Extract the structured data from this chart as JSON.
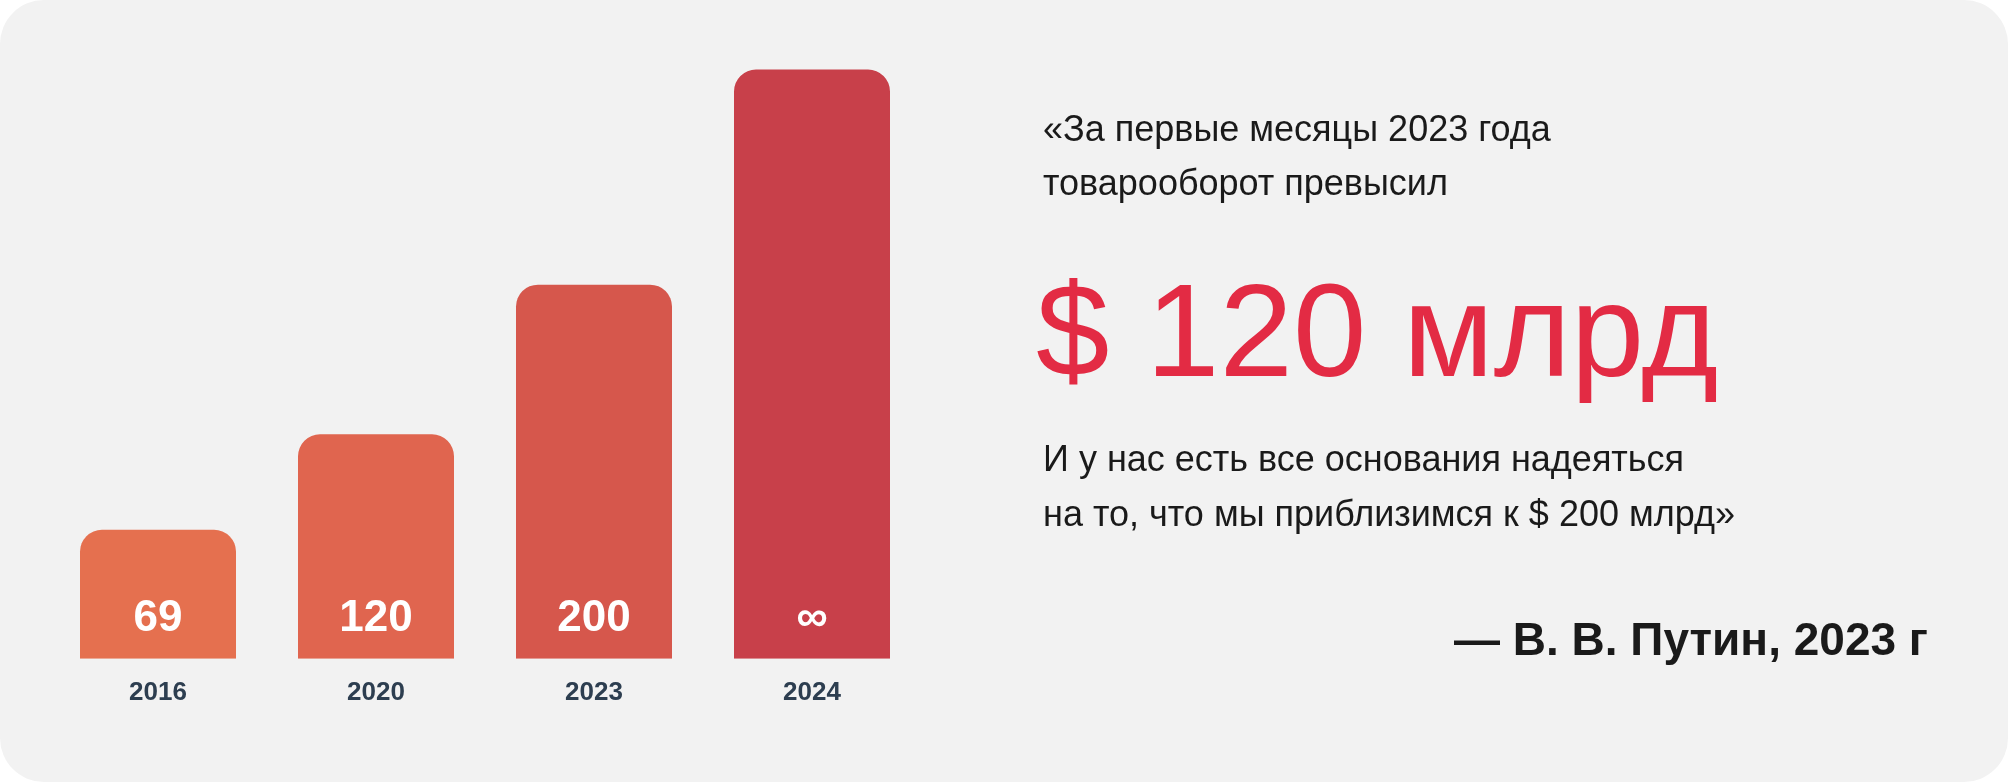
{
  "chart_data": {
    "type": "bar",
    "categories": [
      "2016",
      "2020",
      "2023",
      "2024"
    ],
    "values": [
      69,
      120,
      200,
      315
    ],
    "value_labels": [
      "69",
      "120",
      "200",
      "∞"
    ],
    "colors": [
      "#e5704f",
      "#e0654f",
      "#d6574c",
      "#c8404a"
    ],
    "tick_labels": "x",
    "grid": false,
    "legend": false,
    "annotations": [
      "«За первые месяцы 2023 года",
      "товарооборот превысил",
      "$ 120 млрд",
      "И у нас есть все основания надеяться",
      "на то, что мы приблизимся к $ 200 млрд»",
      "— В. В. Путин, 2023 г"
    ]
  }
}
